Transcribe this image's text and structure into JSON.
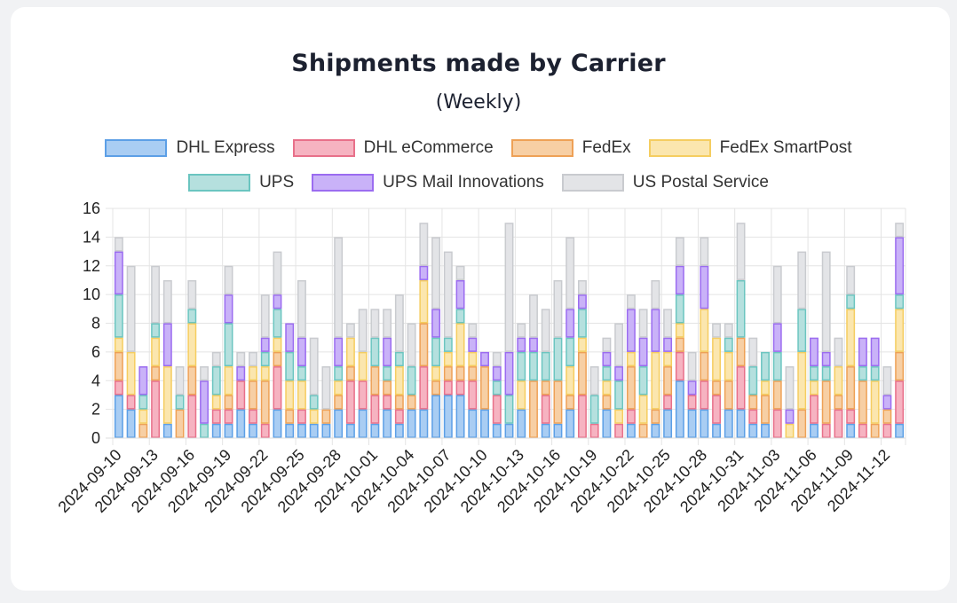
{
  "chart_data": {
    "type": "bar",
    "stacked": true,
    "title": "Shipments made by Carrier",
    "subtitle": "(Weekly)",
    "xlabel": "",
    "ylabel": "",
    "ylim": [
      0,
      16
    ],
    "yticks": [
      0,
      2,
      4,
      6,
      8,
      10,
      12,
      14,
      16
    ],
    "grid": true,
    "legend_position": "top",
    "categories": [
      "2024-09-10",
      "2024-09-11",
      "2024-09-12",
      "2024-09-13",
      "2024-09-14",
      "2024-09-15",
      "2024-09-16",
      "2024-09-17",
      "2024-09-18",
      "2024-09-19",
      "2024-09-20",
      "2024-09-21",
      "2024-09-22",
      "2024-09-23",
      "2024-09-24",
      "2024-09-25",
      "2024-09-26",
      "2024-09-27",
      "2024-09-28",
      "2024-09-29",
      "2024-09-30",
      "2024-10-01",
      "2024-10-02",
      "2024-10-03",
      "2024-10-04",
      "2024-10-05",
      "2024-10-06",
      "2024-10-07",
      "2024-10-08",
      "2024-10-09",
      "2024-10-10",
      "2024-10-11",
      "2024-10-12",
      "2024-10-13",
      "2024-10-14",
      "2024-10-15",
      "2024-10-16",
      "2024-10-17",
      "2024-10-18",
      "2024-10-19",
      "2024-10-20",
      "2024-10-21",
      "2024-10-22",
      "2024-10-23",
      "2024-10-24",
      "2024-10-25",
      "2024-10-26",
      "2024-10-27",
      "2024-10-28",
      "2024-10-29",
      "2024-10-30",
      "2024-10-31",
      "2024-11-01",
      "2024-11-02",
      "2024-11-03",
      "2024-11-04",
      "2024-11-05",
      "2024-11-06",
      "2024-11-07",
      "2024-11-08",
      "2024-11-09",
      "2024-11-10",
      "2024-11-11",
      "2024-11-12",
      "2024-11-13"
    ],
    "tick_labels": [
      "2024-09-10",
      "2024-09-13",
      "2024-09-16",
      "2024-09-19",
      "2024-09-22",
      "2024-09-25",
      "2024-09-28",
      "2024-10-01",
      "2024-10-04",
      "2024-10-07",
      "2024-10-10",
      "2024-10-13",
      "2024-10-16",
      "2024-10-19",
      "2024-10-22",
      "2024-10-25",
      "2024-10-28",
      "2024-10-31",
      "2024-11-03",
      "2024-11-06",
      "2024-11-09",
      "2024-11-12"
    ],
    "series": [
      {
        "name": "DHL Express",
        "fill": "#a9cdf3",
        "stroke": "#5c9fe6",
        "values": [
          3,
          2,
          0,
          0,
          1,
          0,
          0,
          0,
          1,
          1,
          2,
          1,
          0,
          2,
          1,
          1,
          1,
          1,
          2,
          1,
          2,
          1,
          2,
          1,
          2,
          2,
          3,
          3,
          3,
          2,
          2,
          1,
          1,
          2,
          0,
          1,
          1,
          2,
          0,
          0,
          2,
          0,
          1,
          0,
          1,
          2,
          4,
          2,
          2,
          1,
          2,
          2,
          1,
          1,
          0,
          0,
          0,
          1,
          0,
          0,
          1,
          0,
          0,
          0,
          1
        ]
      },
      {
        "name": "DHL eCommerce",
        "fill": "#f6b3c1",
        "stroke": "#e8708a",
        "values": [
          1,
          1,
          0,
          4,
          0,
          0,
          3,
          0,
          1,
          1,
          2,
          1,
          1,
          3,
          0,
          1,
          0,
          0,
          0,
          3,
          2,
          2,
          1,
          1,
          0,
          3,
          0,
          1,
          1,
          2,
          0,
          2,
          0,
          0,
          0,
          2,
          0,
          0,
          3,
          1,
          0,
          1,
          1,
          0,
          0,
          1,
          2,
          1,
          2,
          2,
          0,
          3,
          1,
          0,
          2,
          0,
          0,
          2,
          1,
          2,
          1,
          1,
          0,
          1,
          3
        ]
      },
      {
        "name": "FedEx",
        "fill": "#f7cfa4",
        "stroke": "#eea156",
        "values": [
          2,
          0,
          1,
          1,
          0,
          2,
          2,
          0,
          0,
          1,
          0,
          2,
          3,
          1,
          1,
          0,
          0,
          1,
          1,
          1,
          0,
          2,
          1,
          1,
          1,
          3,
          1,
          1,
          1,
          1,
          3,
          0,
          0,
          0,
          4,
          1,
          3,
          1,
          3,
          0,
          1,
          0,
          3,
          1,
          1,
          2,
          1,
          0,
          2,
          1,
          2,
          2,
          1,
          2,
          2,
          0,
          2,
          0,
          3,
          1,
          3,
          3,
          1,
          1,
          2
        ]
      },
      {
        "name": "FedEx SmartPost",
        "fill": "#fbe6ae",
        "stroke": "#f5cd60",
        "values": [
          1,
          3,
          1,
          2,
          4,
          0,
          3,
          0,
          1,
          2,
          0,
          1,
          1,
          1,
          2,
          2,
          1,
          0,
          1,
          2,
          2,
          0,
          0,
          2,
          0,
          3,
          1,
          1,
          3,
          1,
          0,
          0,
          0,
          2,
          0,
          0,
          0,
          2,
          1,
          0,
          1,
          1,
          1,
          2,
          4,
          1,
          1,
          0,
          3,
          3,
          2,
          0,
          0,
          1,
          0,
          1,
          4,
          1,
          0,
          2,
          4,
          0,
          3,
          0,
          3
        ]
      },
      {
        "name": "UPS",
        "fill": "#b5e0de",
        "stroke": "#6bc5c0",
        "values": [
          3,
          0,
          1,
          1,
          0,
          1,
          1,
          1,
          2,
          3,
          0,
          0,
          1,
          2,
          2,
          1,
          1,
          0,
          1,
          0,
          0,
          2,
          1,
          1,
          2,
          0,
          2,
          1,
          1,
          0,
          0,
          1,
          2,
          2,
          2,
          2,
          3,
          2,
          2,
          2,
          1,
          2,
          0,
          2,
          0,
          0,
          2,
          0,
          0,
          0,
          1,
          4,
          2,
          2,
          2,
          0,
          3,
          1,
          1,
          0,
          1,
          1,
          1,
          0,
          1
        ]
      },
      {
        "name": "UPS Mail Innovations",
        "fill": "#c9b2f8",
        "stroke": "#9b6cf0",
        "values": [
          3,
          0,
          2,
          0,
          3,
          0,
          0,
          3,
          0,
          2,
          1,
          0,
          1,
          1,
          2,
          2,
          0,
          0,
          2,
          0,
          0,
          0,
          2,
          0,
          0,
          1,
          2,
          0,
          2,
          1,
          1,
          1,
          3,
          1,
          1,
          0,
          0,
          2,
          1,
          0,
          1,
          1,
          3,
          2,
          3,
          1,
          2,
          1,
          3,
          0,
          0,
          0,
          0,
          0,
          2,
          1,
          0,
          2,
          1,
          0,
          0,
          2,
          2,
          1,
          4
        ]
      },
      {
        "name": "US Postal Service",
        "fill": "#e3e4e7",
        "stroke": "#c9cbcf",
        "values": [
          1,
          6,
          0,
          4,
          3,
          2,
          2,
          1,
          1,
          2,
          1,
          1,
          3,
          3,
          0,
          4,
          4,
          3,
          7,
          1,
          3,
          2,
          2,
          4,
          3,
          3,
          5,
          6,
          1,
          1,
          0,
          1,
          9,
          1,
          3,
          3,
          4,
          5,
          1,
          2,
          1,
          3,
          1,
          2,
          2,
          2,
          2,
          2,
          2,
          1,
          1,
          4,
          2,
          0,
          4,
          3,
          4,
          0,
          7,
          2,
          2,
          0,
          0,
          2,
          1
        ]
      }
    ]
  }
}
